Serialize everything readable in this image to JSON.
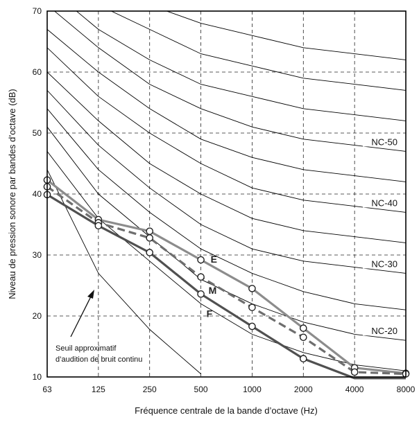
{
  "chart_data": {
    "type": "line",
    "title": "",
    "xlabel": "Fréquence centrale de la bande d’octave (Hz)",
    "ylabel": "Niveau de pression sonore par bandes d’octave (dB)",
    "x_scale": "log2",
    "categories": [
      "63",
      "125",
      "250",
      "500",
      "1000",
      "2000",
      "4000",
      "8000"
    ],
    "x": [
      63,
      125,
      250,
      500,
      1000,
      2000,
      4000,
      8000
    ],
    "ylim": [
      10,
      70
    ],
    "yticks": [
      10,
      20,
      30,
      40,
      50,
      60,
      70
    ],
    "grid": true,
    "grid_style": "dashed",
    "nc_curves": [
      {
        "nc": 15,
        "values": [
          47,
          36,
          29,
          22,
          17,
          14,
          12,
          11
        ]
      },
      {
        "nc": 20,
        "values": [
          51,
          40,
          33,
          26,
          22,
          19,
          17,
          16
        ]
      },
      {
        "nc": 25,
        "values": [
          54,
          44,
          37,
          31,
          27,
          24,
          22,
          21
        ]
      },
      {
        "nc": 30,
        "values": [
          57,
          48,
          41,
          35,
          31,
          29,
          28,
          27
        ]
      },
      {
        "nc": 35,
        "values": [
          60,
          52,
          45,
          40,
          36,
          34,
          33,
          32
        ]
      },
      {
        "nc": 40,
        "values": [
          64,
          56,
          50,
          45,
          41,
          39,
          38,
          37
        ]
      },
      {
        "nc": 45,
        "values": [
          67,
          60,
          54,
          49,
          46,
          44,
          43,
          42
        ]
      },
      {
        "nc": 50,
        "values": [
          71,
          64,
          58,
          54,
          51,
          49,
          48,
          47
        ]
      },
      {
        "nc": 55,
        "values": [
          74,
          67,
          62,
          58,
          56,
          54,
          53,
          52
        ]
      },
      {
        "nc": 60,
        "values": [
          77,
          71,
          67,
          63,
          61,
          59,
          58,
          57
        ]
      },
      {
        "nc": 65,
        "values": [
          80,
          75,
          71,
          68,
          66,
          64,
          63,
          62
        ]
      }
    ],
    "nc_labels": [
      {
        "text": "NC-50",
        "nc": 50
      },
      {
        "text": "NC-40",
        "nc": 40
      },
      {
        "text": "NC-30",
        "nc": 30
      },
      {
        "text": "NC-20",
        "nc": 20
      }
    ],
    "threshold_curve": {
      "values": [
        44,
        27,
        17.8,
        10.5
      ]
    },
    "threshold_annotation": {
      "line1": "Seuil approximatif",
      "line2": "d’audition de bruit continu"
    },
    "series": [
      {
        "name": "E",
        "color": "#8c8c8c",
        "dash": false,
        "values": [
          42.3,
          35.8,
          33.9,
          29.2,
          24.5,
          18,
          11.5,
          10.6
        ]
      },
      {
        "name": "M",
        "color": "#6e6e6e",
        "dash": true,
        "values": [
          41.2,
          35.3,
          32.8,
          26.4,
          21.4,
          16.5,
          10.8,
          10.5
        ]
      },
      {
        "name": "F",
        "color": "#505050",
        "dash": false,
        "values": [
          39.9,
          34.8,
          30.4,
          23.6,
          18.3,
          13,
          9.8,
          9.8
        ]
      }
    ]
  }
}
